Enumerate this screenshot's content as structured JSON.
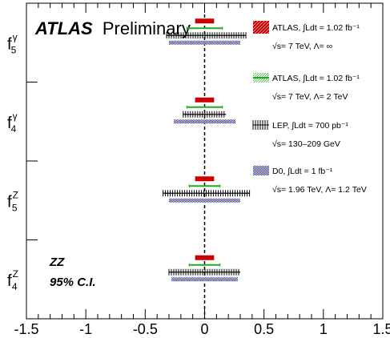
{
  "chart_data": {
    "type": "interval",
    "title_bold": "ATLAS",
    "title_rest": "Preliminary",
    "annotation_line1": "ZZ",
    "annotation_line2": "95% C.I.",
    "xlim": [
      -1.5,
      1.5
    ],
    "x_ticks": [
      "-1.5",
      "-1",
      "-0.5",
      "0",
      "0.5",
      "1",
      "1.5"
    ],
    "reference_line_x": 0,
    "categories": [
      {
        "base": "f",
        "sup": "γ",
        "sub": "5"
      },
      {
        "base": "f",
        "sup": "γ",
        "sub": "4"
      },
      {
        "base": "f",
        "sup": "Z",
        "sub": "5"
      },
      {
        "base": "f",
        "sup": "Z",
        "sub": "4"
      }
    ],
    "series": [
      {
        "name": "ATLAS, ∫Ldt = 1.02 fb⁻¹",
        "subtitle": "√s= 7 TeV, Λ= ∞",
        "color": "#cc0000",
        "style": "solid-bar",
        "intervals": [
          [
            -0.08,
            0.08
          ],
          [
            -0.08,
            0.08
          ],
          [
            -0.08,
            0.08
          ],
          [
            -0.08,
            0.08
          ]
        ]
      },
      {
        "name": "ATLAS, ∫Ldt = 1.02 fb⁻¹",
        "subtitle": "√s= 7 TeV, Λ= 2 TeV",
        "color": "#22aa22",
        "style": "line",
        "intervals": [
          [
            -0.15,
            0.15
          ],
          [
            -0.15,
            0.15
          ],
          [
            -0.13,
            0.13
          ],
          [
            -0.13,
            0.13
          ]
        ]
      },
      {
        "name": "LEP, ∫Ldt = 700 pb⁻¹",
        "subtitle": "√s= 130–209 GeV",
        "color": "#000000",
        "style": "hatched",
        "intervals": [
          [
            -0.32,
            0.35
          ],
          [
            -0.18,
            0.18
          ],
          [
            -0.35,
            0.38
          ],
          [
            -0.3,
            0.3
          ]
        ]
      },
      {
        "name": "D0, ∫Ldt = 1 fb⁻¹",
        "subtitle": "√s= 1.96 TeV, Λ= 1.2 TeV",
        "color": "#2222cc",
        "style": "dotted",
        "intervals": [
          [
            -0.3,
            0.3
          ],
          [
            -0.26,
            0.26
          ],
          [
            -0.3,
            0.3
          ],
          [
            -0.28,
            0.28
          ]
        ]
      }
    ]
  }
}
